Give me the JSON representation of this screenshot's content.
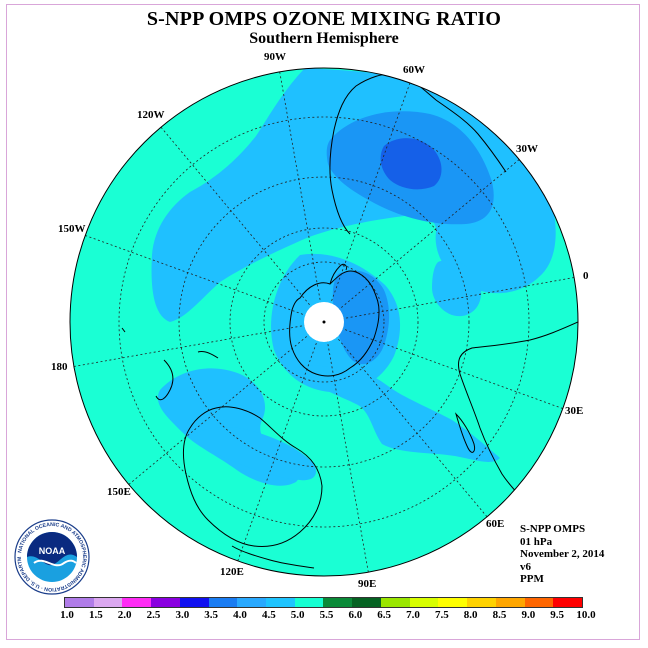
{
  "title": "S-NPP OMPS OZONE MIXING RATIO",
  "subtitle": "Southern Hemisphere",
  "lon_labels": [
    "90W",
    "60W",
    "30W",
    "0",
    "30E",
    "60E",
    "90E",
    "120E",
    "150E",
    "180",
    "150W",
    "120W"
  ],
  "info": {
    "instrument": "S-NPP OMPS",
    "level": "01 hPa",
    "date": "November 2, 2014",
    "version": "v6",
    "units": "PPM"
  },
  "colorbar": {
    "labels": [
      "1.0",
      "1.5",
      "2.0",
      "2.5",
      "3.0",
      "3.5",
      "4.0",
      "4.5",
      "5.0",
      "5.5",
      "6.0",
      "6.5",
      "7.0",
      "7.5",
      "8.0",
      "8.5",
      "9.0",
      "9.5",
      "10.0"
    ],
    "colors": [
      "#b07ce8",
      "#dba8f0",
      "#ff2cf5",
      "#8a00e0",
      "#1010f0",
      "#1a7cf2",
      "#29a9ff",
      "#1fc4ff",
      "#16ffd2",
      "#0a8a38",
      "#056222",
      "#9ae600",
      "#d8ff00",
      "#ffff00",
      "#ffd200",
      "#ffa600",
      "#ff6600",
      "#ff0000",
      "#8a5a3a"
    ]
  },
  "logo": {
    "name": "NOAA",
    "ring_text": "NATIONAL OCEANIC AND ATMOSPHERIC ADMINISTRATION · U.S. DEPARTMENT OF COMMERCE"
  }
}
